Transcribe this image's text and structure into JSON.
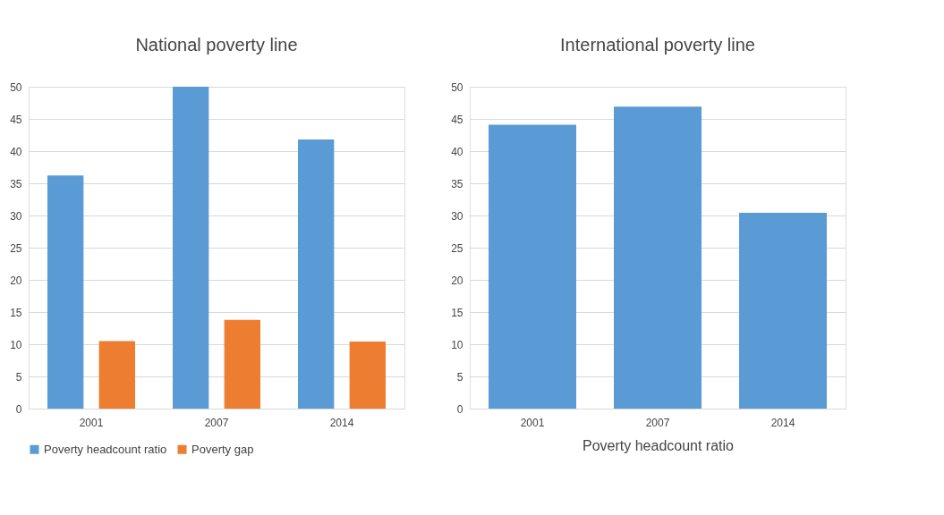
{
  "chart_data": [
    {
      "type": "bar",
      "title": "National poverty line",
      "categories": [
        "2001",
        "2007",
        "2014"
      ],
      "series": [
        {
          "name": "Poverty headcount ratio",
          "color": "#5b9bd5",
          "values": [
            36.2,
            50,
            41.8
          ]
        },
        {
          "name": "Poverty gap",
          "color": "#ed7d31",
          "values": [
            10.5,
            13.8,
            10.4
          ]
        }
      ],
      "ylim": [
        0,
        50
      ],
      "yticks": [
        0,
        5,
        10,
        15,
        20,
        25,
        30,
        35,
        40,
        45,
        50
      ],
      "grid": "y",
      "legend": "bottom"
    },
    {
      "type": "bar",
      "title": "International poverty line",
      "xlabel": "Poverty headcount ratio",
      "categories": [
        "2001",
        "2007",
        "2014"
      ],
      "series": [
        {
          "color": "#5b9bd5",
          "values": [
            44.1,
            46.9,
            30.4
          ]
        }
      ],
      "ylim": [
        0,
        50
      ],
      "yticks": [
        0,
        5,
        10,
        15,
        20,
        25,
        30,
        35,
        40,
        45,
        50
      ],
      "grid": "y"
    }
  ]
}
